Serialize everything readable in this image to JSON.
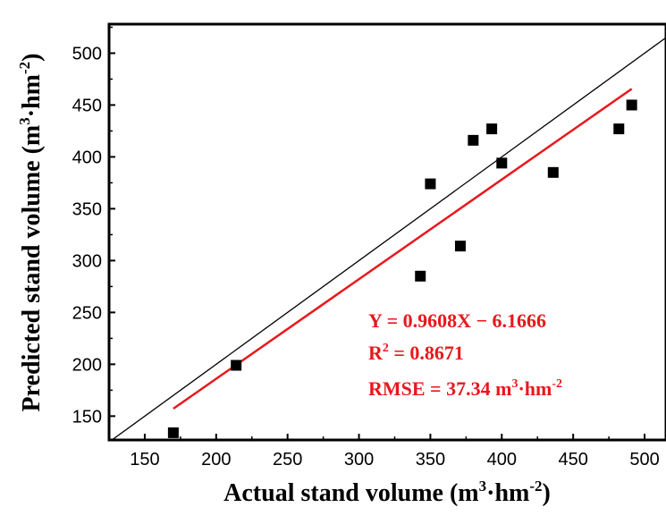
{
  "chart_data": {
    "type": "scatter",
    "xlabel": {
      "main": "Actual stand volume (m",
      "sup1": "3",
      "mid": "·hm",
      "sup2": "-2",
      "end": ")"
    },
    "ylabel": {
      "main": "Predicted stand volume (m",
      "sup1": "3",
      "mid": "·hm",
      "sup2": "-2",
      "end": ")"
    },
    "xlim": [
      125,
      515
    ],
    "ylim": [
      127,
      528
    ],
    "xticks": [
      150,
      200,
      250,
      300,
      350,
      400,
      450,
      500
    ],
    "yticks": [
      150,
      200,
      250,
      300,
      350,
      400,
      450,
      500
    ],
    "grid": false,
    "points": [
      {
        "x": 170,
        "y": 134
      },
      {
        "x": 214,
        "y": 199
      },
      {
        "x": 343,
        "y": 285
      },
      {
        "x": 350,
        "y": 374
      },
      {
        "x": 371,
        "y": 314
      },
      {
        "x": 380,
        "y": 416
      },
      {
        "x": 393,
        "y": 427
      },
      {
        "x": 400,
        "y": 394
      },
      {
        "x": 436,
        "y": 385
      },
      {
        "x": 482,
        "y": 427
      },
      {
        "x": 491,
        "y": 450
      }
    ],
    "reference_line": {
      "type": "1:1",
      "color": "#000000"
    },
    "fit_line": {
      "slope": 0.9608,
      "intercept": -6.1666,
      "x_range": [
        170,
        491
      ],
      "color": "#e8181c"
    },
    "annotations": {
      "equation": "Y = 0.9608X − 6.1666",
      "r2_label": "R",
      "r2_sup": "2",
      "r2_value": " = 0.8671",
      "rmse_text": "RMSE = 37.34 m",
      "rmse_sup1": "3",
      "rmse_mid": "·hm",
      "rmse_sup2": "-2"
    }
  }
}
